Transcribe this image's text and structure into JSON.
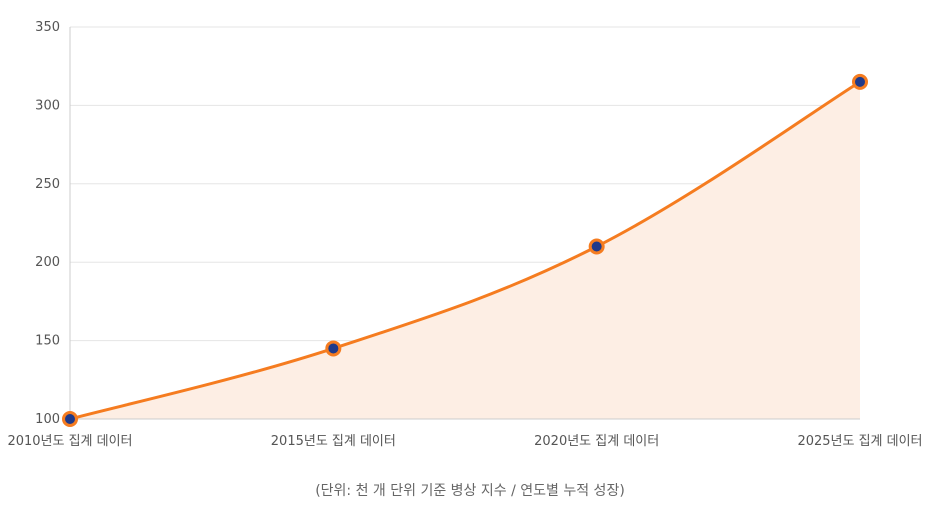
{
  "chart_data": {
    "type": "area",
    "categories": [
      "2010년도 집계 데이터",
      "2015년도 집계 데이터",
      "2020년도 집계 데이터",
      "2025년도 집계 데이터"
    ],
    "series": [
      {
        "values": [
          100,
          145,
          210,
          315
        ]
      }
    ],
    "ylim": [
      100,
      350
    ],
    "yticks": [
      100,
      150,
      200,
      250,
      300,
      350
    ],
    "grid": true,
    "colors": {
      "line": "#f57c20",
      "fill": "#fdeee4",
      "marker_fill": "#1f3a8a",
      "marker_stroke": "#f57c20",
      "grid": "#e5e5e5",
      "axis": "#cccccc"
    }
  },
  "caption": "(단위: 천 개 단위 기준 병상 지수 / 연도별 누적 성장)"
}
